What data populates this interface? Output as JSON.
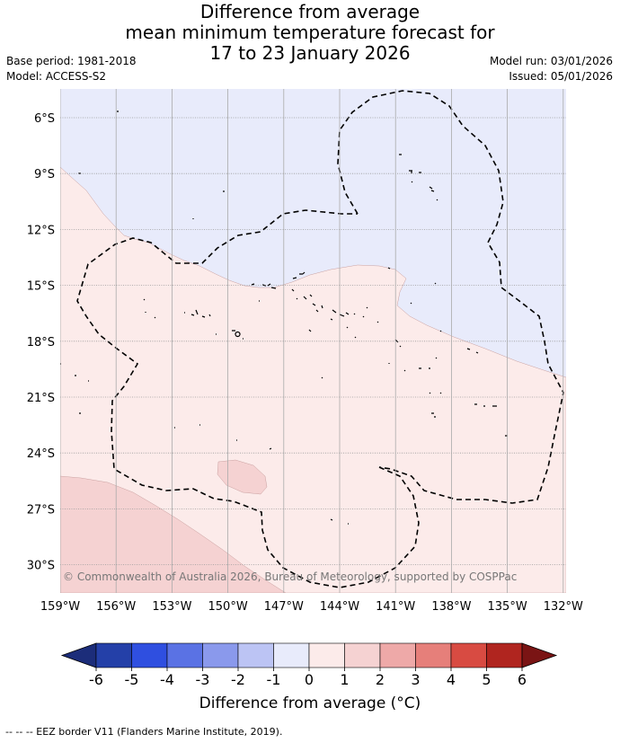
{
  "title_lines": [
    "Difference from average",
    "mean minimum temperature forecast for",
    "17 to 23 January 2026"
  ],
  "base_period": "Base period: 1981-2018",
  "model": "Model: ACCESS-S2",
  "model_run": "Model run: 03/01/2026",
  "issued": "Issued: 05/01/2026",
  "credit": "© Commonwealth of Australia 2026, Bureau of Meteorology, supported by COSPPac",
  "lat_labels": [
    "6°S",
    "9°S",
    "12°S",
    "15°S",
    "18°S",
    "21°S",
    "24°S",
    "27°S",
    "30°S"
  ],
  "lon_labels": [
    "159°W",
    "156°W",
    "153°W",
    "150°W",
    "147°W",
    "144°W",
    "141°W",
    "138°W",
    "135°W",
    "132°W"
  ],
  "colorbar": {
    "ticks": [
      "-6",
      "-5",
      "-4",
      "-3",
      "-2",
      "-1",
      "0",
      "1",
      "2",
      "3",
      "4",
      "5",
      "6"
    ],
    "colors": [
      "#2440a8",
      "#2f4fe0",
      "#5a72e4",
      "#8a99ec",
      "#bcc4f4",
      "#e8ebfb",
      "#fcebea",
      "#f5d2d2",
      "#eea9a8",
      "#e67f7a",
      "#d84b42",
      "#b0251f"
    ],
    "under_color": "#1c2d7a",
    "over_color": "#7a1414",
    "label": "Difference from average (°C)"
  },
  "legend_footer": "-- -- -- EEZ border V11 (Flanders Marine Institute, 2019)."
}
